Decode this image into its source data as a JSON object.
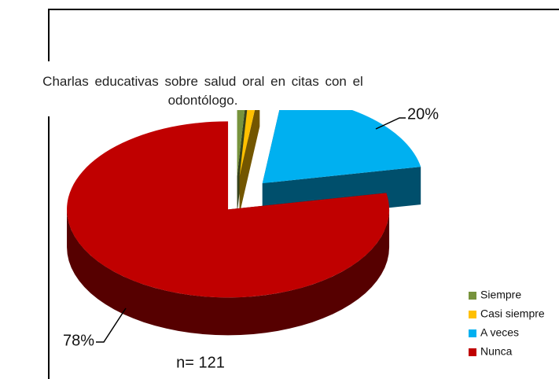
{
  "chart_data": {
    "type": "pie",
    "title": "Charlas educativas  sobre salud  oral  en  citas con el odontólogo.",
    "categories": [
      "Siempre",
      "Casi siempre",
      "A veces",
      "Nunca"
    ],
    "values": [
      1,
      1,
      20,
      78
    ],
    "value_labels": [
      null,
      null,
      "20%",
      "78%"
    ],
    "colors": [
      "#77933c",
      "#ffc000",
      "#00b0f0",
      "#c00000"
    ],
    "annotation": "n= 121",
    "legend": "bottom-right"
  }
}
